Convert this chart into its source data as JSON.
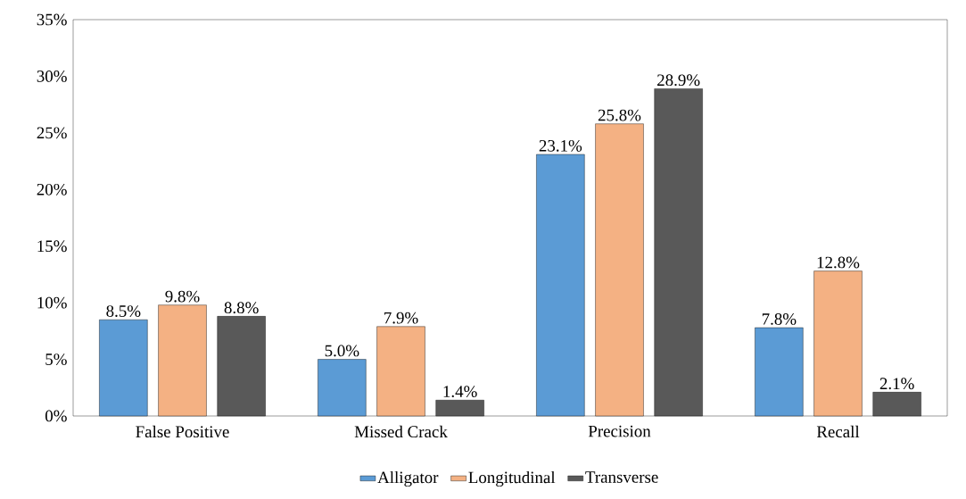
{
  "chart_data": {
    "type": "bar",
    "categories": [
      "False Positive",
      "Missed Crack",
      "Precision",
      "Recall"
    ],
    "series": [
      {
        "name": "Alligator",
        "color": "#5b9bd5",
        "values": [
          8.5,
          5.0,
          23.1,
          7.8
        ],
        "value_labels": [
          "8.5%",
          "5.0%",
          "23.1%",
          "7.8%"
        ]
      },
      {
        "name": "Longitudinal",
        "color": "#f4b183",
        "values": [
          9.8,
          7.9,
          25.8,
          12.8
        ],
        "value_labels": [
          "9.8%",
          "7.9%",
          "25.8%",
          "12.8%"
        ]
      },
      {
        "name": "Transverse",
        "color": "#595959",
        "values": [
          8.8,
          1.4,
          28.9,
          2.1
        ],
        "value_labels": [
          "8.8%",
          "1.4%",
          "28.9%",
          "2.1%"
        ]
      }
    ],
    "ylim": [
      0,
      35
    ],
    "yticks": [
      {
        "value": 0,
        "label": "0%"
      },
      {
        "value": 5,
        "label": "5%"
      },
      {
        "value": 10,
        "label": "10%"
      },
      {
        "value": 15,
        "label": "15%"
      },
      {
        "value": 20,
        "label": "20%"
      },
      {
        "value": 25,
        "label": "25%"
      },
      {
        "value": 30,
        "label": "30%"
      },
      {
        "value": 35,
        "label": "35%"
      }
    ],
    "legend": "bottom",
    "grid": false
  }
}
